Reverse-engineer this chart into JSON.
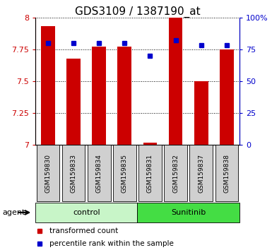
{
  "title": "GDS3109 / 1387190_at",
  "samples": [
    "GSM159830",
    "GSM159833",
    "GSM159834",
    "GSM159835",
    "GSM159831",
    "GSM159832",
    "GSM159837",
    "GSM159838"
  ],
  "transformed_counts": [
    7.93,
    7.68,
    7.77,
    7.77,
    7.02,
    8.0,
    7.5,
    7.75
  ],
  "percentile_ranks": [
    80,
    80,
    80,
    80,
    70,
    82,
    78,
    78
  ],
  "groups": [
    {
      "label": "control",
      "indices": [
        0,
        1,
        2,
        3
      ],
      "color": "#c8f5c8"
    },
    {
      "label": "Sunitinib",
      "indices": [
        4,
        5,
        6,
        7
      ],
      "color": "#44dd44"
    }
  ],
  "ylim_left": [
    7.0,
    8.0
  ],
  "ylim_right": [
    0,
    100
  ],
  "yticks_left": [
    7.0,
    7.25,
    7.5,
    7.75,
    8.0
  ],
  "yticks_right": [
    0,
    25,
    50,
    75,
    100
  ],
  "ytick_labels_left": [
    "7",
    "7.25",
    "7.5",
    "7.75",
    "8"
  ],
  "ytick_labels_right": [
    "0",
    "25",
    "50",
    "75",
    "100%"
  ],
  "bar_color": "#cc0000",
  "marker_color": "#0000cc",
  "bar_width": 0.55,
  "grid_color": "#000000",
  "bg_color": "#ffffff",
  "sample_box_color": "#d0d0d0",
  "agent_label": "agent",
  "legend_bar_label": "transformed count",
  "legend_marker_label": "percentile rank within the sample",
  "title_fontsize": 11,
  "tick_fontsize": 8,
  "sample_fontsize": 6.5,
  "group_fontsize": 8,
  "legend_fontsize": 7.5
}
